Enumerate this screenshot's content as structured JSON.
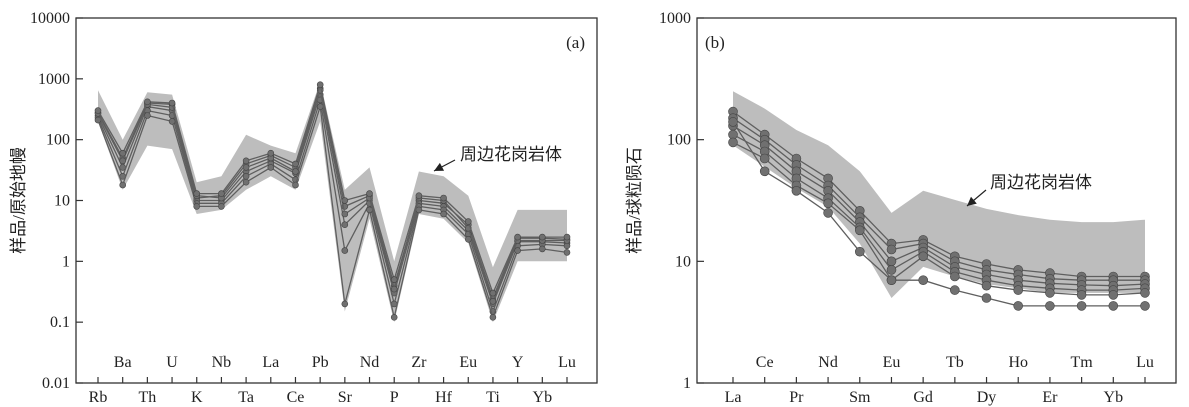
{
  "chart_data": [
    {
      "type": "line",
      "panel_label": "(a)",
      "ylabel": "样品/原始地幔",
      "yscale": "log",
      "ylim": [
        0.01,
        10000
      ],
      "y_ticks": [
        "0.01",
        "0.1",
        "1",
        "10",
        "100",
        "1000",
        "10000"
      ],
      "categories": [
        "Rb",
        "Ba",
        "Th",
        "U",
        "K",
        "Nb",
        "Ta",
        "La",
        "Ce",
        "Pb",
        "Sr",
        "Nd",
        "P",
        "Zr",
        "Hf",
        "Eu",
        "Ti",
        "Y",
        "Yb",
        "Lu"
      ],
      "x_labels_lower": [
        "Rb",
        "Th",
        "K",
        "Ta",
        "Ce",
        "Sr",
        "P",
        "Hf",
        "Ti",
        "Yb"
      ],
      "x_labels_upper": [
        "Ba",
        "U",
        "Nb",
        "La",
        "Pb",
        "Nd",
        "Zr",
        "Eu",
        "Y",
        "Lu"
      ],
      "annotation": "周边花岗岩体",
      "field_upper": [
        650,
        100,
        600,
        550,
        20,
        25,
        120,
        80,
        60,
        900,
        15,
        35,
        1.0,
        30,
        25,
        12,
        0.8,
        7,
        7,
        7
      ],
      "field_lower": [
        200,
        15,
        80,
        70,
        6,
        7,
        15,
        25,
        15,
        200,
        0.15,
        5,
        0.1,
        6,
        5,
        2,
        0.1,
        1,
        1,
        1
      ],
      "series": [
        {
          "values": [
            280,
            50,
            400,
            380,
            11,
            12,
            40,
            55,
            35,
            700,
            8,
            12,
            0.4,
            10,
            9,
            4,
            0.25,
            2.4,
            2.4,
            2.3
          ]
        },
        {
          "values": [
            250,
            35,
            350,
            300,
            10,
            10,
            30,
            45,
            28,
            550,
            4,
            10,
            0.3,
            9,
            8,
            3.2,
            0.2,
            2.1,
            2.1,
            2.0
          ]
        },
        {
          "values": [
            230,
            25,
            300,
            250,
            9,
            9,
            25,
            40,
            22,
            450,
            1.5,
            9,
            0.2,
            8,
            7,
            2.8,
            0.15,
            1.8,
            1.9,
            1.8
          ]
        },
        {
          "values": [
            210,
            18,
            250,
            200,
            8,
            8,
            20,
            35,
            18,
            350,
            0.2,
            7,
            0.12,
            7,
            6,
            2.3,
            0.12,
            1.5,
            1.6,
            1.4
          ]
        },
        {
          "values": [
            270,
            45,
            380,
            340,
            12,
            11,
            35,
            50,
            30,
            650,
            6,
            11,
            0.35,
            11,
            10,
            3.5,
            0.22,
            2.2,
            2.2,
            2.2
          ]
        },
        {
          "values": [
            300,
            60,
            420,
            400,
            13,
            13,
            45,
            60,
            40,
            800,
            10,
            13,
            0.5,
            12,
            11,
            4.5,
            0.3,
            2.5,
            2.5,
            2.5
          ]
        }
      ]
    },
    {
      "type": "line",
      "panel_label": "(b)",
      "ylabel": "样品/球粒陨石",
      "yscale": "log",
      "ylim": [
        1,
        1000
      ],
      "y_ticks": [
        "1",
        "10",
        "100",
        "1000"
      ],
      "categories": [
        "La",
        "Ce",
        "Pr",
        "Nd",
        "Sm",
        "Eu",
        "Gd",
        "Tb",
        "Dy",
        "Ho",
        "Er",
        "Tm",
        "Yb",
        "Lu"
      ],
      "x_labels_lower": [
        "La",
        "Pr",
        "Sm",
        "Gd",
        "Dy",
        "Er",
        "Yb"
      ],
      "x_labels_upper": [
        "Ce",
        "Nd",
        "Eu",
        "Tb",
        "Ho",
        "Tm",
        "Lu"
      ],
      "annotation": "周边花岗岩体",
      "field_upper": [
        250,
        180,
        120,
        90,
        55,
        25,
        38,
        32,
        27,
        24,
        22,
        21,
        21,
        22
      ],
      "field_lower": [
        90,
        60,
        40,
        28,
        14,
        5,
        9,
        7.5,
        6.5,
        6,
        5.5,
        5.5,
        5.5,
        5.5
      ],
      "series": [
        {
          "values": [
            170,
            110,
            70,
            48,
            26,
            14,
            15,
            11,
            9.5,
            8.5,
            8,
            7.5,
            7.5,
            7.5
          ]
        },
        {
          "values": [
            150,
            100,
            62,
            42,
            23,
            12.5,
            14,
            10,
            8.5,
            7.8,
            7.2,
            7,
            7,
            7
          ]
        },
        {
          "values": [
            130,
            90,
            55,
            38,
            21,
            10,
            13,
            9,
            7.8,
            7,
            6.6,
            6.4,
            6.3,
            6.5
          ]
        },
        {
          "values": [
            110,
            80,
            48,
            33,
            19,
            8.5,
            12,
            8.2,
            7,
            6.3,
            6,
            5.8,
            5.8,
            6
          ]
        },
        {
          "values": [
            95,
            70,
            42,
            30,
            18,
            7,
            11,
            7.5,
            6.3,
            5.8,
            5.5,
            5.3,
            5.3,
            5.5
          ]
        },
        {
          "values": [
            140,
            55,
            38,
            25,
            12,
            7,
            7,
            5.8,
            5,
            4.3,
            4.3,
            4.3,
            4.3,
            4.3
          ]
        }
      ]
    }
  ]
}
